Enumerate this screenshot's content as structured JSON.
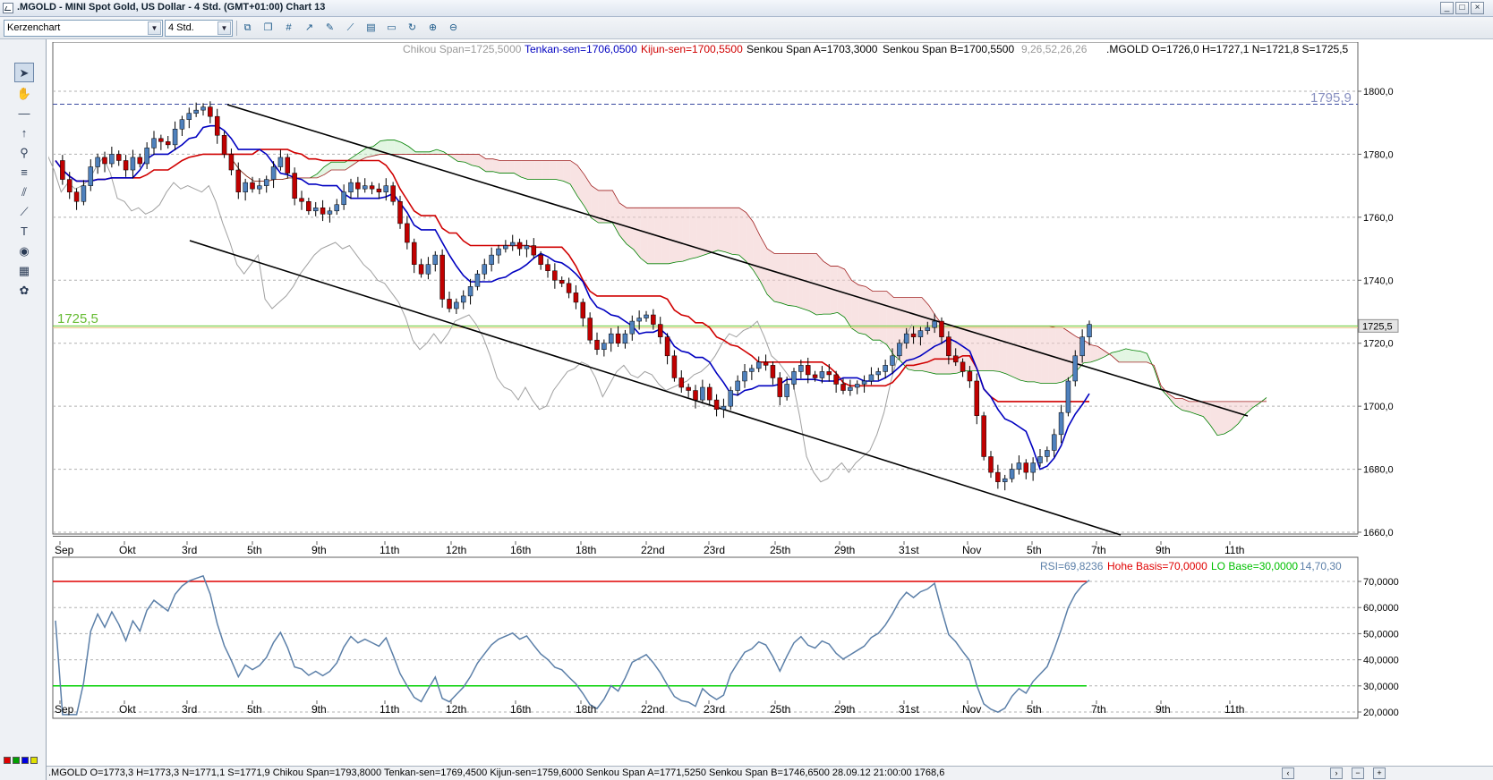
{
  "window": {
    "title": ".MGOLD - MINI Spot Gold, US Dollar - 4 Std. (GMT+01:00)   Chart 13",
    "buttons": [
      "_",
      "□",
      "×"
    ]
  },
  "toolbar": {
    "chart_type": "Kerzenchart",
    "timeframe": "4 Std.",
    "tools": [
      "new-window-icon",
      "copy-window-icon",
      "grid-icon",
      "zoom-chart-icon",
      "edit-icon",
      "draw-line-icon",
      "print-preview-icon",
      "print-icon",
      "refresh-icon",
      "add-indicator-icon",
      "remove-indicator-icon"
    ]
  },
  "palette": {
    "tools": [
      "pointer-icon",
      "hand-icon",
      "horizontal-line-icon",
      "arrow-up-icon",
      "zoom-icon",
      "fibonacci-icon",
      "channel-icon",
      "trend-icon",
      "text-icon",
      "eye-icon",
      "calculator-icon",
      "paint-icon"
    ],
    "colors": [
      "#e00000",
      "#00a000",
      "#0000e0",
      "#e0e000"
    ]
  },
  "price_panel": {
    "legend": {
      "chikou": "Chikou Span=1725,5000",
      "tenkan": "Tenkan-sen=1706,0500",
      "kijun": "Kijun-sen=1700,5500",
      "senkou_a": "Senkou Span A=1703,3000",
      "senkou_b": "Senkou Span B=1700,5500",
      "params": "9,26,52,26,26",
      "ohlc": ".MGOLD O=1726,0 H=1727,1 N=1721,8 S=1725,5"
    },
    "hline_top_label": "1795,9",
    "hline_mid_label": "1725,5",
    "last_price_tag": "1725,5",
    "y_ticks": [
      "1800,0",
      "1780,0",
      "1760,0",
      "1740,0",
      "1720,0",
      "1700,0",
      "1680,0",
      "1660,0"
    ],
    "x_ticks": [
      "Sep",
      "Okt",
      "3rd",
      "5th",
      "9th",
      "11th",
      "12th",
      "16th",
      "18th",
      "22nd",
      "23rd",
      "25th",
      "29th",
      "31st",
      "Nov",
      "5th",
      "7th",
      "9th",
      "11th"
    ]
  },
  "rsi_panel": {
    "legend": {
      "rsi": "RSI=69,8236",
      "high": "Hohe Basis=70,0000",
      "low": "LO Base=30,0000",
      "params": "14,70,30"
    },
    "y_ticks": [
      "70,0000",
      "60,0000",
      "50,0000",
      "40,0000",
      "30,0000",
      "20,0000"
    ],
    "x_ticks": [
      "Sep",
      "Okt",
      "3rd",
      "5th",
      "9th",
      "11th",
      "12th",
      "16th",
      "18th",
      "22nd",
      "23rd",
      "25th",
      "29th",
      "31st",
      "Nov",
      "5th",
      "7th",
      "9th",
      "11th"
    ]
  },
  "statusbar": {
    "text": ".MGOLD O=1773,3 H=1773,3 N=1771,1 S=1771,9   Chikou Span=1793,8000  Tenkan-sen=1769,4500  Kijun-sen=1759,6000  Senkou Span A=1771,5250  Senkou Span B=1746,6500   28.09.12 21:00:00  1768,6",
    "nav": [
      "‹",
      "›",
      "−",
      "+"
    ]
  },
  "colors": {
    "up": "#4f81bd",
    "down": "#c00000",
    "tenkan": "#0000c0",
    "kijun": "#d00000",
    "chikou": "#a0a0a0",
    "rsi": "#5b7fa8",
    "rsi_high": "#e00000",
    "rsi_low": "#00d000",
    "hline_mid": "#66cc33",
    "hline_top": "#3a4aa0"
  }
}
